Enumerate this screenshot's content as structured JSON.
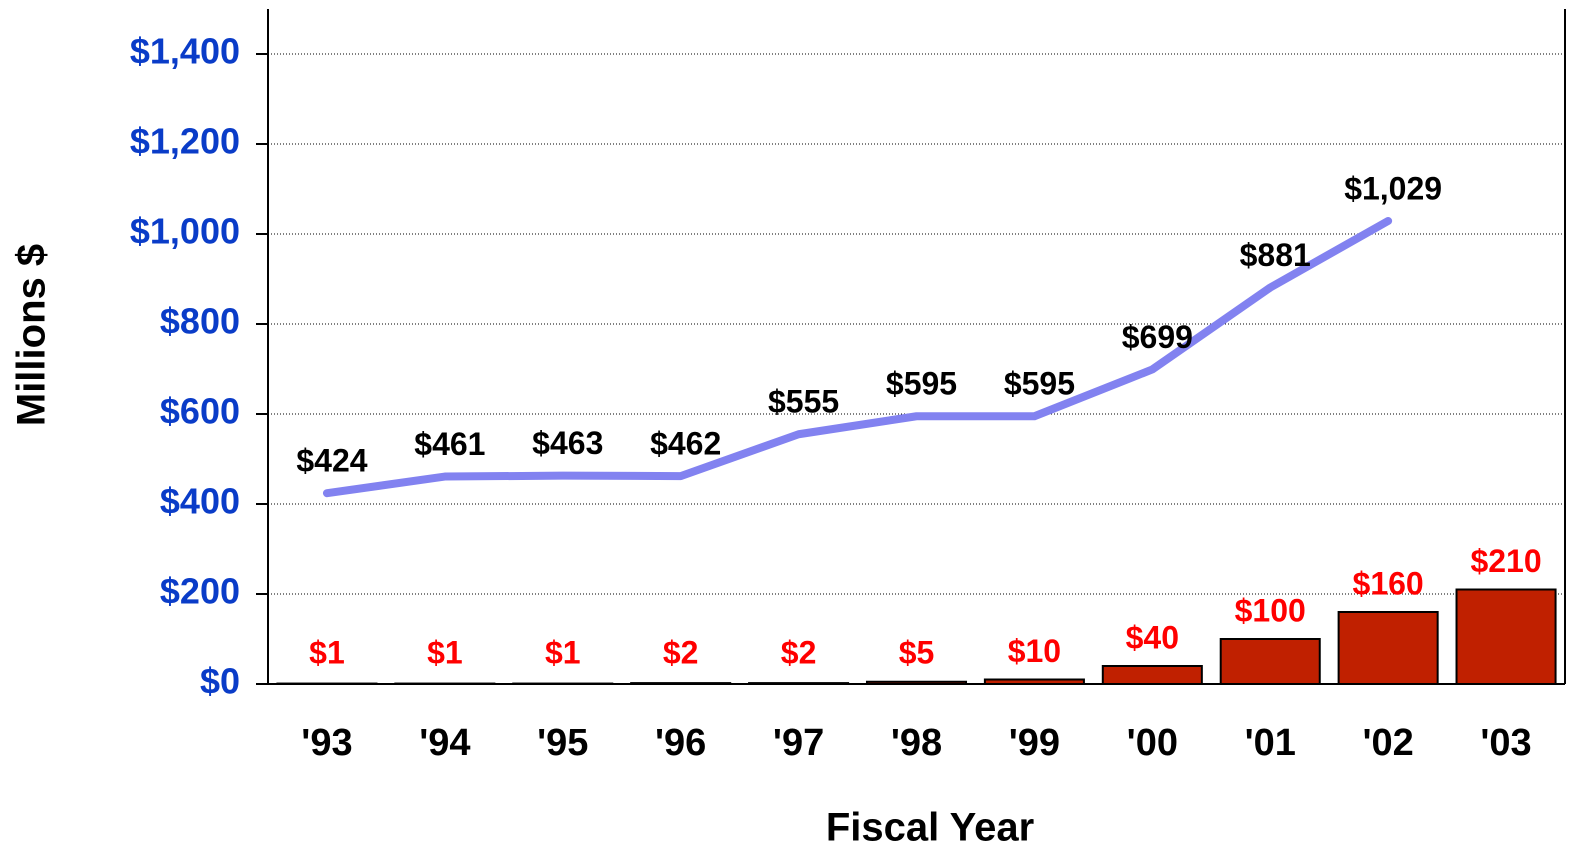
{
  "chart_data": {
    "type": "bar_line",
    "x_label": "Fiscal Year",
    "y_label": "Millions $",
    "categories": [
      "'93",
      "'94",
      "'95",
      "'96",
      "'97",
      "'98",
      "'99",
      "'00",
      "'01",
      "'02",
      "'03"
    ],
    "series": [
      {
        "type": "line",
        "color": "#8282f0",
        "values": [
          424,
          461,
          463,
          462,
          555,
          595,
          595,
          699,
          881,
          1029,
          null
        ],
        "value_labels": [
          "$424",
          "$461",
          "$463",
          "$462",
          "$555",
          "$595",
          "$595",
          "$699",
          "$881",
          "$1,029",
          null
        ]
      },
      {
        "type": "bar",
        "color": "#c02000",
        "values": [
          1,
          1,
          1,
          2,
          2,
          5,
          10,
          40,
          100,
          160,
          210
        ],
        "value_labels": [
          "$1",
          "$1",
          "$1",
          "$2",
          "$2",
          "$5",
          "$10",
          "$40",
          "$100",
          "$160",
          "$210"
        ]
      }
    ],
    "ylim": [
      0,
      1500
    ],
    "yticks": [
      {
        "value": 0,
        "label": "$0"
      },
      {
        "value": 200,
        "label": "$200"
      },
      {
        "value": 400,
        "label": "$400"
      },
      {
        "value": 600,
        "label": "$600"
      },
      {
        "value": 800,
        "label": "$800"
      },
      {
        "value": 1000,
        "label": "$1,000"
      },
      {
        "value": 1200,
        "label": "$1,200"
      },
      {
        "value": 1400,
        "label": "$1,400"
      }
    ],
    "grid": true
  }
}
